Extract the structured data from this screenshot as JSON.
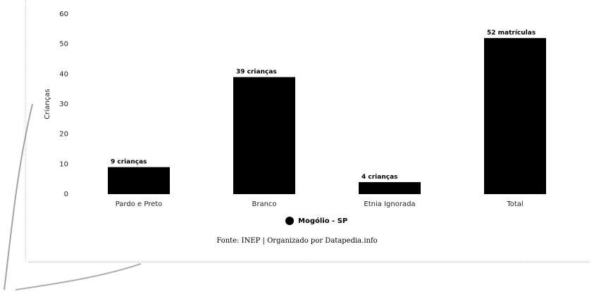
{
  "chart_data": {
    "type": "bar",
    "title": "",
    "xlabel": "",
    "ylabel": "Crianças",
    "ylim": [
      0,
      60
    ],
    "y_ticks": [
      0,
      10,
      20,
      30,
      40,
      50,
      60
    ],
    "grid": false,
    "legend_position": "bottom",
    "categories": [
      "Pardo e Preto",
      "Branco",
      "Etnia Ignorada",
      "Total"
    ],
    "series": [
      {
        "name": "Mogólio - SP",
        "values": [
          9,
          39,
          4,
          52
        ],
        "data_labels": [
          "9 crianças",
          "39 crianças",
          "4 crianças",
          "52 matrículas"
        ],
        "color": "#000000"
      }
    ]
  },
  "source_note": "Fonte: INEP | Organizado por Datapedia.info"
}
